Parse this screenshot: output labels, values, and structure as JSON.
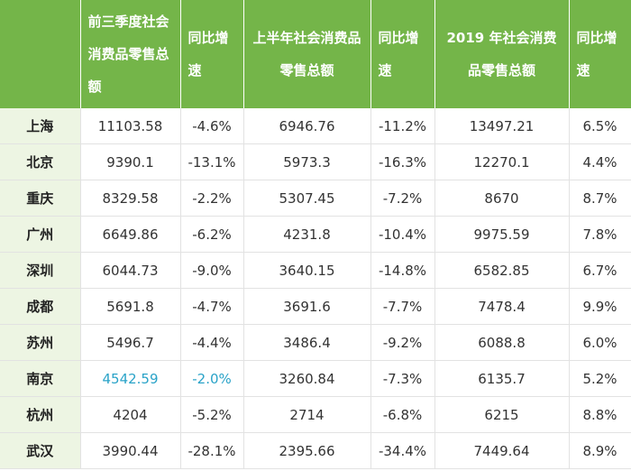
{
  "headers": [
    "",
    "前三季度社会消费品零售总额",
    "同比增速",
    "上半年社会消费品零售总额",
    "同比增速",
    "2019 年社会消费品零售总额",
    "同比增速"
  ],
  "rows": [
    [
      "上海",
      "11103.58",
      "-4.6%",
      "6946.76",
      "-11.2%",
      "13497.21",
      "6.5%"
    ],
    [
      "北京",
      "9390.1",
      "-13.1%",
      "5973.3",
      "-16.3%",
      "12270.1",
      "4.4%"
    ],
    [
      "重庆",
      "8329.58",
      "-2.2%",
      "5307.45",
      "-7.2%",
      "8670",
      "8.7%"
    ],
    [
      "广州",
      "6649.86",
      "-6.2%",
      "4231.8",
      "-10.4%",
      "9975.59",
      "7.8%"
    ],
    [
      "深圳",
      "6044.73",
      "-9.0%",
      "3640.15",
      "-14.8%",
      "6582.85",
      "6.7%"
    ],
    [
      "成都",
      "5691.8",
      "-4.7%",
      "3691.6",
      "-7.7%",
      "7478.4",
      "9.9%"
    ],
    [
      "苏州",
      "5496.7",
      "-4.4%",
      "3486.4",
      "-9.2%",
      "6088.8",
      "6.0%"
    ],
    [
      "南京",
      "4542.59",
      "-2.0%",
      "3260.84",
      "-7.3%",
      "6135.7",
      "5.2%"
    ],
    [
      "杭州",
      "4204",
      "-5.2%",
      "2714",
      "-6.8%",
      "6215",
      "8.8%"
    ],
    [
      "武汉",
      "3990.44",
      "-28.1%",
      "2395.66",
      "-34.4%",
      "7449.64",
      "8.9%"
    ]
  ],
  "colors": {
    "header_bg": "#74b549",
    "city_bg": "#edf5e3",
    "highlight_text": "#2aa3c8"
  },
  "highlighted_cells": [
    [
      7,
      1
    ],
    [
      7,
      2
    ]
  ]
}
